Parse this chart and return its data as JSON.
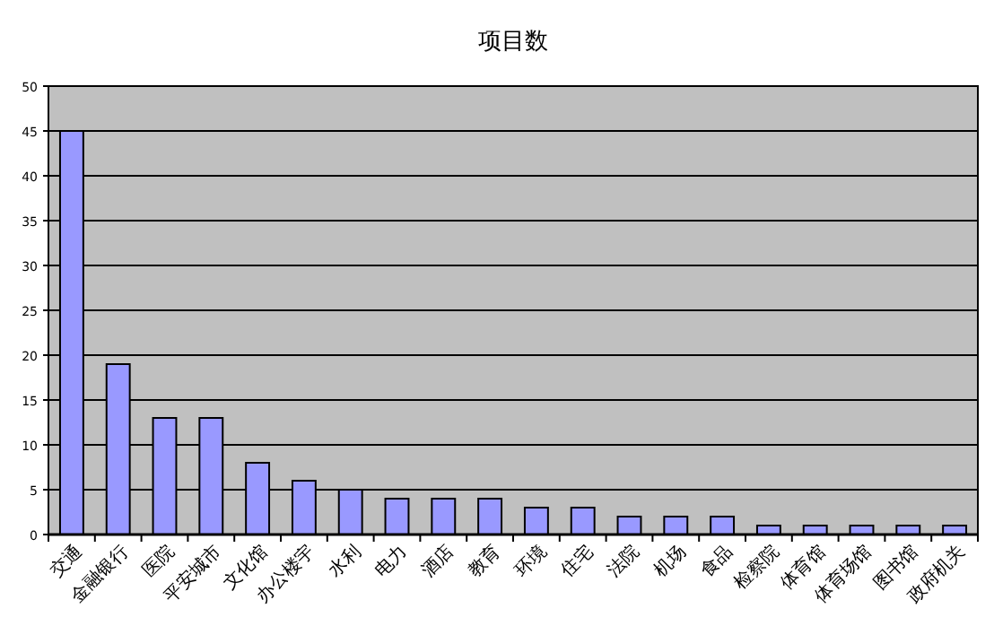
{
  "chart_data": {
    "type": "bar",
    "title": "项目数",
    "categories": [
      "交通",
      "金融银行",
      "医院",
      "平安城市",
      "文化馆",
      "办公楼宇",
      "水利",
      "电力",
      "酒店",
      "教育",
      "环境",
      "住宅",
      "法院",
      "机场",
      "食品",
      "检察院",
      "体育馆",
      "体育场馆",
      "图书馆",
      "政府机关"
    ],
    "values": [
      45,
      19,
      13,
      13,
      8,
      6,
      5,
      4,
      4,
      4,
      3,
      3,
      2,
      2,
      2,
      1,
      1,
      1,
      1,
      1
    ],
    "color": "#9999ff",
    "ylim": [
      0,
      50
    ],
    "yticks": [
      0,
      5,
      10,
      15,
      20,
      25,
      30,
      35,
      40,
      45,
      50
    ],
    "grid": "y"
  }
}
